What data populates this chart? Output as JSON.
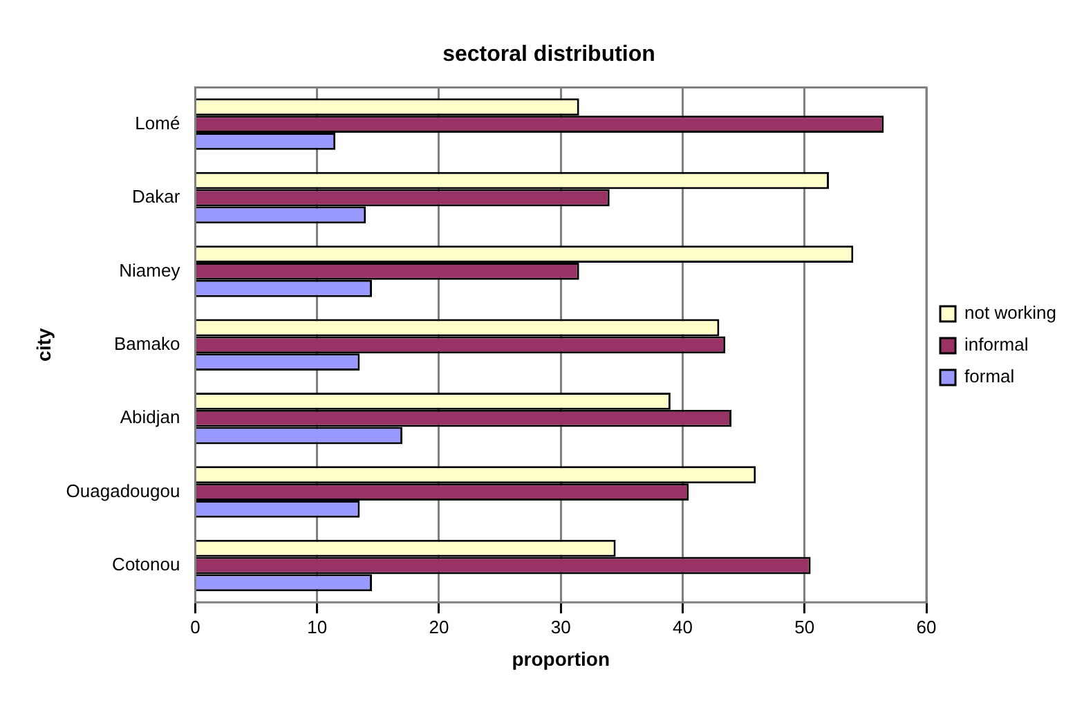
{
  "chart_data": {
    "type": "bar",
    "orientation": "horizontal",
    "title": "sectoral distribution",
    "xlabel": "proportion",
    "ylabel": "city",
    "categories": [
      "Lomé",
      "Dakar",
      "Niamey",
      "Bamako",
      "Abidjan",
      "Ouagadougou",
      "Cotonou"
    ],
    "series": [
      {
        "name": "not working",
        "color": "#ffffcc",
        "values": [
          31.5,
          52,
          54,
          43,
          39,
          46,
          34.5
        ]
      },
      {
        "name": "informal",
        "color": "#993366",
        "values": [
          56.5,
          34,
          31.5,
          43.5,
          44,
          40.5,
          50.5
        ]
      },
      {
        "name": "formal",
        "color": "#9999ff",
        "values": [
          11.5,
          14,
          14.5,
          13.5,
          17,
          13.5,
          14.5
        ]
      }
    ],
    "xlim": [
      0,
      60
    ],
    "xticks": [
      0,
      10,
      20,
      30,
      40,
      50,
      60
    ],
    "grid": "x",
    "legend": "right"
  }
}
